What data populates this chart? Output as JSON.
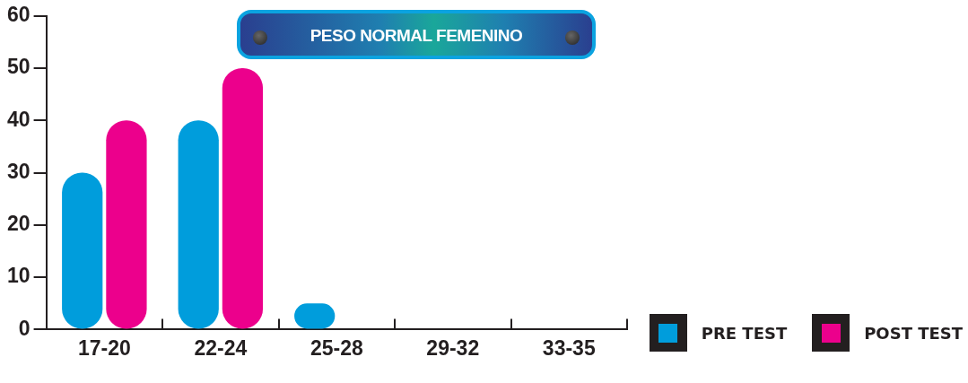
{
  "chart_data": {
    "type": "bar",
    "title": "PESO NORMAL FEMENINO",
    "categories": [
      "17-20",
      "22-24",
      "25-28",
      "29-32",
      "33-35"
    ],
    "series": [
      {
        "name": "PRE TEST",
        "color": "#009ddc",
        "values": [
          30,
          40,
          5,
          0,
          0
        ]
      },
      {
        "name": "POST TEST",
        "color": "#ec008c",
        "values": [
          40,
          50,
          0,
          0,
          0
        ]
      }
    ],
    "ylim": [
      0,
      60
    ],
    "yticks": [
      0,
      10,
      20,
      30,
      40,
      50,
      60
    ],
    "grid": false,
    "legend": "bottom right"
  }
}
